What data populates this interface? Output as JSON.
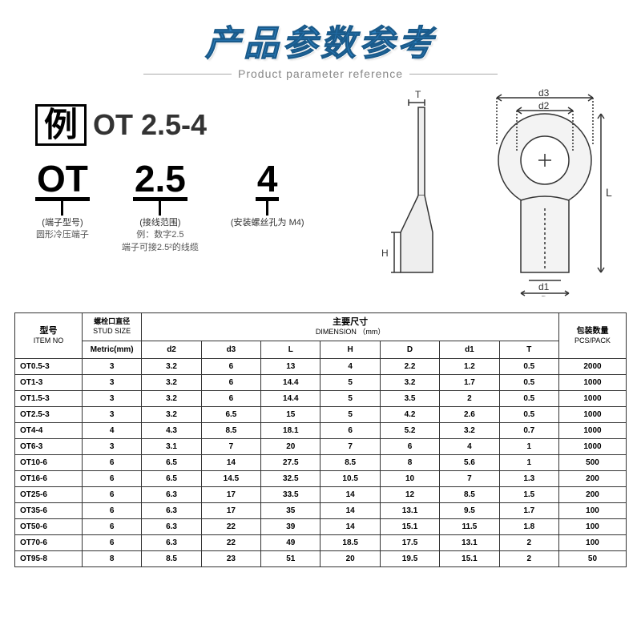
{
  "title": {
    "main": "产品参数参考",
    "sub": "Product parameter reference"
  },
  "example": {
    "box_label": "例",
    "code": "OT 2.5-4",
    "parts": [
      {
        "big": "OT",
        "label": "(端子型号)",
        "sub": "圆形冷压端子"
      },
      {
        "big": "2.5",
        "label": "(接线范围)",
        "sub": "例：数字2.5\n端子可接2.5²的线缆"
      },
      {
        "big": "4",
        "label": "(安装螺丝孔为 M4)",
        "sub": ""
      }
    ]
  },
  "diagram": {
    "stroke": "#333333",
    "fill": "#f5f5f5",
    "labels": {
      "T": "T",
      "d3": "d3",
      "d2": "d2",
      "L": "L",
      "H": "H",
      "d1": "d1",
      "D": "D"
    }
  },
  "table": {
    "header": {
      "item_cn": "型号",
      "item_en": "ITEM NO",
      "stud_cn": "螺栓口直径",
      "stud_en": "STUD SIZE",
      "stud_unit": "Metric(mm)",
      "dim_cn": "主要尺寸",
      "dim_en": "DIMENSION （mm）",
      "cols": [
        "d2",
        "d3",
        "L",
        "H",
        "D",
        "d1",
        "T"
      ],
      "pack_cn": "包装数量",
      "pack_en": "PCS/PACK"
    },
    "rows": [
      [
        "OT0.5-3",
        "3",
        "3.2",
        "6",
        "13",
        "4",
        "2.2",
        "1.2",
        "0.5",
        "2000"
      ],
      [
        "OT1-3",
        "3",
        "3.2",
        "6",
        "14.4",
        "5",
        "3.2",
        "1.7",
        "0.5",
        "1000"
      ],
      [
        "OT1.5-3",
        "3",
        "3.2",
        "6",
        "14.4",
        "5",
        "3.5",
        "2",
        "0.5",
        "1000"
      ],
      [
        "OT2.5-3",
        "3",
        "3.2",
        "6.5",
        "15",
        "5",
        "4.2",
        "2.6",
        "0.5",
        "1000"
      ],
      [
        "OT4-4",
        "4",
        "4.3",
        "8.5",
        "18.1",
        "6",
        "5.2",
        "3.2",
        "0.7",
        "1000"
      ],
      [
        "OT6-3",
        "3",
        "3.1",
        "7",
        "20",
        "7",
        "6",
        "4",
        "1",
        "1000"
      ],
      [
        "OT10-6",
        "6",
        "6.5",
        "14",
        "27.5",
        "8.5",
        "8",
        "5.6",
        "1",
        "500"
      ],
      [
        "OT16-6",
        "6",
        "6.5",
        "14.5",
        "32.5",
        "10.5",
        "10",
        "7",
        "1.3",
        "200"
      ],
      [
        "OT25-6",
        "6",
        "6.3",
        "17",
        "33.5",
        "14",
        "12",
        "8.5",
        "1.5",
        "200"
      ],
      [
        "OT35-6",
        "6",
        "6.3",
        "17",
        "35",
        "14",
        "13.1",
        "9.5",
        "1.7",
        "100"
      ],
      [
        "OT50-6",
        "6",
        "6.3",
        "22",
        "39",
        "14",
        "15.1",
        "11.5",
        "1.8",
        "100"
      ],
      [
        "OT70-6",
        "6",
        "6.3",
        "22",
        "49",
        "18.5",
        "17.5",
        "13.1",
        "2",
        "100"
      ],
      [
        "OT95-8",
        "8",
        "8.5",
        "23",
        "51",
        "20",
        "19.5",
        "15.1",
        "2",
        "50"
      ]
    ],
    "col_widths": [
      "70",
      "62",
      "62",
      "62",
      "62",
      "62",
      "62",
      "62",
      "62",
      "70"
    ]
  }
}
